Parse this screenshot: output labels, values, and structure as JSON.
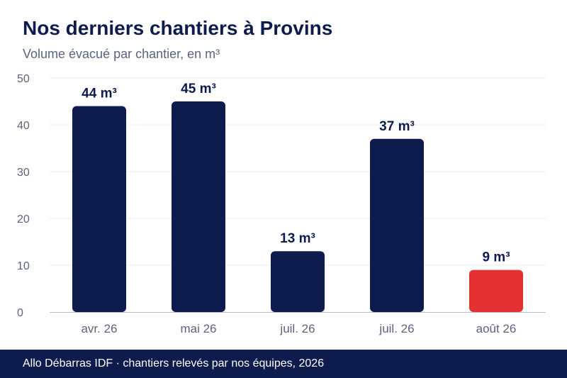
{
  "title": "Nos derniers chantiers à Provins",
  "subtitle": "Volume évacué par chantier, en m³",
  "footer": "Allo Débarras IDF · chantiers relevés par nos équipes, 2026",
  "chart_data": {
    "type": "bar",
    "categories": [
      "avr. 26",
      "mai 26",
      "juil. 26",
      "juil. 26",
      "août 26"
    ],
    "values": [
      44,
      45,
      13,
      37,
      9
    ],
    "data_labels": [
      "44 m³",
      "45 m³",
      "13 m³",
      "37 m³",
      "9 m³"
    ],
    "y_ticks": [
      "0",
      "10",
      "20",
      "30",
      "40",
      "50"
    ],
    "ylim": [
      0,
      50
    ],
    "grid": true,
    "colors": {
      "bar": "#0e1b4d",
      "highlight": "#e33131",
      "highlight_index": 4,
      "grid": "#ececf2",
      "axis": "#b9bed0",
      "tick_text": "#5a6480",
      "label_text": "#0e1b4d"
    }
  }
}
